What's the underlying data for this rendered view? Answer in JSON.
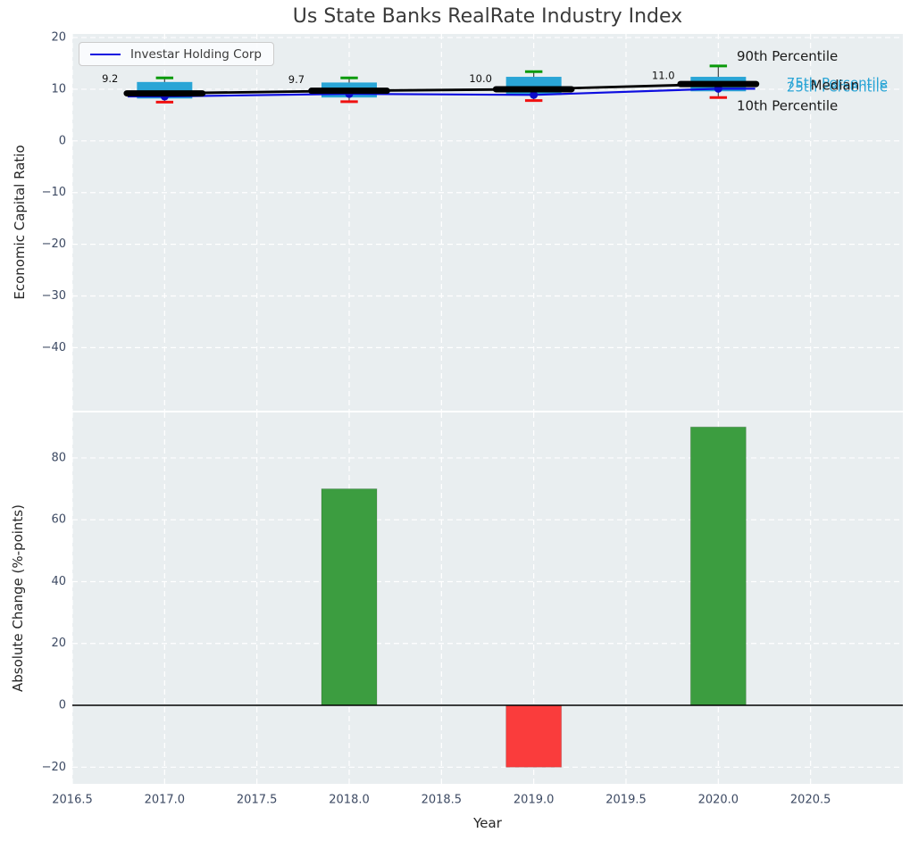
{
  "colors": {
    "axes_bg": "#e9eef0",
    "grid": "#ffffff",
    "box_fill": "#2aa5d6",
    "whisker": "#444444",
    "cap_90th": "#0a9a0a",
    "cap_10th": "#f01010",
    "median_line": "#000000",
    "company_line": "#0d0de0",
    "company_dot": "#0b0bc8",
    "bar_positive": "#3c9d40",
    "bar_negative": "#fa3c3c",
    "tick_label": "#3d4a63",
    "axis_label": "#262626",
    "title": "#3a3a3a",
    "annotation_black": "#1a1a1a",
    "annotation_cyan": "#2aa5d6",
    "zero_line": "#000000",
    "value_label": "#111111"
  },
  "chart_data": [
    {
      "type": "boxplot+line",
      "title": "Us State Banks RealRate Industry Index",
      "ylabel": "Economic Capital Ratio",
      "xlim": [
        2016.5,
        2021.0
      ],
      "ylim": [
        -52.2,
        20.7
      ],
      "grid": "white dashed",
      "yticks": [
        {
          "v": 20,
          "label": "20"
        },
        {
          "v": 10,
          "label": "10"
        },
        {
          "v": 0,
          "label": "0"
        },
        {
          "v": -10,
          "label": "−10"
        },
        {
          "v": -20,
          "label": "−20"
        },
        {
          "v": -30,
          "label": "−30"
        },
        {
          "v": -40,
          "label": "−40"
        }
      ],
      "years": [
        2017,
        2018,
        2019,
        2020
      ],
      "boxes": [
        {
          "year": 2017,
          "p10": 7.5,
          "p25": 8.2,
          "median": 9.2,
          "p75": 11.4,
          "p90": 12.2
        },
        {
          "year": 2018,
          "p10": 7.6,
          "p25": 8.4,
          "median": 9.7,
          "p75": 11.3,
          "p90": 12.2
        },
        {
          "year": 2019,
          "p10": 7.8,
          "p25": 8.9,
          "median": 10.0,
          "p75": 12.4,
          "p90": 13.4
        },
        {
          "year": 2020,
          "p10": 8.4,
          "p25": 9.6,
          "median": 11.0,
          "p75": 12.4,
          "p90": 14.5
        }
      ],
      "company_series": {
        "name": "Investar Holding Corp",
        "values": [
          {
            "year": 2017,
            "v": 8.6
          },
          {
            "year": 2018,
            "v": 9.1
          },
          {
            "year": 2019,
            "v": 8.9
          },
          {
            "year": 2020,
            "v": 10.1
          }
        ]
      },
      "median_value_labels": [
        {
          "text": "9.2",
          "x": 2016.66,
          "y": 12.1
        },
        {
          "text": "9.7",
          "x": 2017.67,
          "y": 11.9
        },
        {
          "text": "10.0",
          "x": 2018.65,
          "y": 12.1
        },
        {
          "text": "11.0",
          "x": 2019.64,
          "y": 12.7
        }
      ],
      "annotations": [
        {
          "text": "90th Percentile",
          "x": 2020.1,
          "y": 16.4,
          "color": "black"
        },
        {
          "text": "75th Percentile",
          "x": 2020.37,
          "y": 11.2,
          "color": "cyan"
        },
        {
          "text": "25th Percentile",
          "x": 2020.37,
          "y": 10.4,
          "color": "cyan"
        },
        {
          "text": "Median",
          "x": 2020.5,
          "y": 10.8,
          "color": "black"
        },
        {
          "text": "10th Percentile",
          "x": 2020.1,
          "y": 6.8,
          "color": "black"
        }
      ],
      "legend_position": "upper left"
    },
    {
      "type": "bar",
      "ylabel": "Absolute Change (%-points)",
      "xlabel": "Year",
      "xlim": [
        2016.5,
        2021.0
      ],
      "ylim": [
        -25.4,
        94.7
      ],
      "grid": "white dashed",
      "yticks": [
        {
          "v": 80,
          "label": "80"
        },
        {
          "v": 60,
          "label": "60"
        },
        {
          "v": 40,
          "label": "40"
        },
        {
          "v": 20,
          "label": "20"
        },
        {
          "v": 0,
          "label": "0"
        },
        {
          "v": -20,
          "label": "−20"
        }
      ],
      "xticks": [
        {
          "v": 2016.5,
          "label": "2016.5"
        },
        {
          "v": 2017.0,
          "label": "2017.0"
        },
        {
          "v": 2017.5,
          "label": "2017.5"
        },
        {
          "v": 2018.0,
          "label": "2018.0"
        },
        {
          "v": 2018.5,
          "label": "2018.5"
        },
        {
          "v": 2019.0,
          "label": "2019.0"
        },
        {
          "v": 2019.5,
          "label": "2019.5"
        },
        {
          "v": 2020.0,
          "label": "2020.0"
        },
        {
          "v": 2020.5,
          "label": "2020.5"
        }
      ],
      "bars": [
        {
          "year": 2018,
          "value": 70
        },
        {
          "year": 2019,
          "value": -20
        },
        {
          "year": 2020,
          "value": 90
        }
      ],
      "bar_width_years": 0.3,
      "zero_line": true
    }
  ]
}
